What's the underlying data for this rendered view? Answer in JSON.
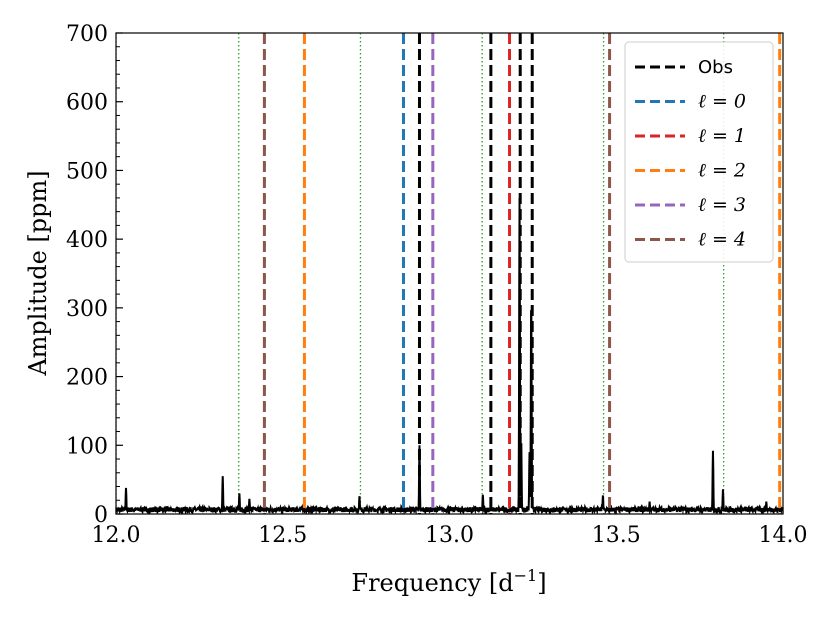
{
  "chart_data": {
    "type": "line",
    "xlabel": "Frequency",
    "xlabel_unit": "d",
    "xlabel_unit_exp": "−1",
    "ylabel": "Amplitude [ppm]",
    "xlim": [
      12.0,
      14.0
    ],
    "ylim": [
      0,
      700
    ],
    "x_ticks": [
      12.0,
      12.5,
      13.0,
      13.5,
      14.0
    ],
    "x_tick_labels": [
      "12.0",
      "12.5",
      "13.0",
      "13.5",
      "14.0"
    ],
    "y_ticks": [
      0,
      100,
      200,
      300,
      400,
      500,
      600,
      700
    ],
    "y_tick_labels": [
      "0",
      "100",
      "200",
      "300",
      "400",
      "500",
      "600",
      "700"
    ],
    "grid": false,
    "legend_position": "top-right",
    "spectrum": {
      "color": "#000000",
      "noise_level": 8,
      "peaks": [
        {
          "x": 12.03,
          "y": 38
        },
        {
          "x": 12.32,
          "y": 55
        },
        {
          "x": 12.37,
          "y": 30
        },
        {
          "x": 12.4,
          "y": 22
        },
        {
          "x": 12.73,
          "y": 26
        },
        {
          "x": 12.91,
          "y": 100
        },
        {
          "x": 13.1,
          "y": 28
        },
        {
          "x": 13.21,
          "y": 460
        },
        {
          "x": 13.215,
          "y": 110
        },
        {
          "x": 13.24,
          "y": 90
        },
        {
          "x": 13.245,
          "y": 320
        },
        {
          "x": 13.46,
          "y": 27
        },
        {
          "x": 13.6,
          "y": 18
        },
        {
          "x": 13.79,
          "y": 92
        },
        {
          "x": 13.82,
          "y": 36
        },
        {
          "x": 13.95,
          "y": 18
        }
      ]
    },
    "dotted_lines": {
      "color": "#2ca02c",
      "x": [
        12.0,
        12.368,
        12.733,
        13.098,
        13.462,
        13.822
      ]
    },
    "series": [
      {
        "name": "Obs",
        "label": "Obs",
        "math": false,
        "color": "#000000",
        "x": [
          12.91,
          13.124,
          13.212,
          13.248
        ]
      },
      {
        "name": "ℓ = 0",
        "label": "ℓ = 0",
        "math": true,
        "color": "#1f77b4",
        "x": [
          12.862
        ]
      },
      {
        "name": "ℓ = 1",
        "label": "ℓ = 1",
        "math": true,
        "color": "#d62728",
        "x": [
          13.18
        ]
      },
      {
        "name": "ℓ = 2",
        "label": "ℓ = 2",
        "math": true,
        "color": "#ff7f0e",
        "x": [
          12.565,
          13.99
        ]
      },
      {
        "name": "ℓ = 3",
        "label": "ℓ = 3",
        "math": true,
        "color": "#9467bd",
        "x": [
          12.95
        ]
      },
      {
        "name": "ℓ = 4",
        "label": "ℓ = 4",
        "math": true,
        "color": "#8c564b",
        "x": [
          12.445,
          13.48
        ]
      }
    ]
  }
}
